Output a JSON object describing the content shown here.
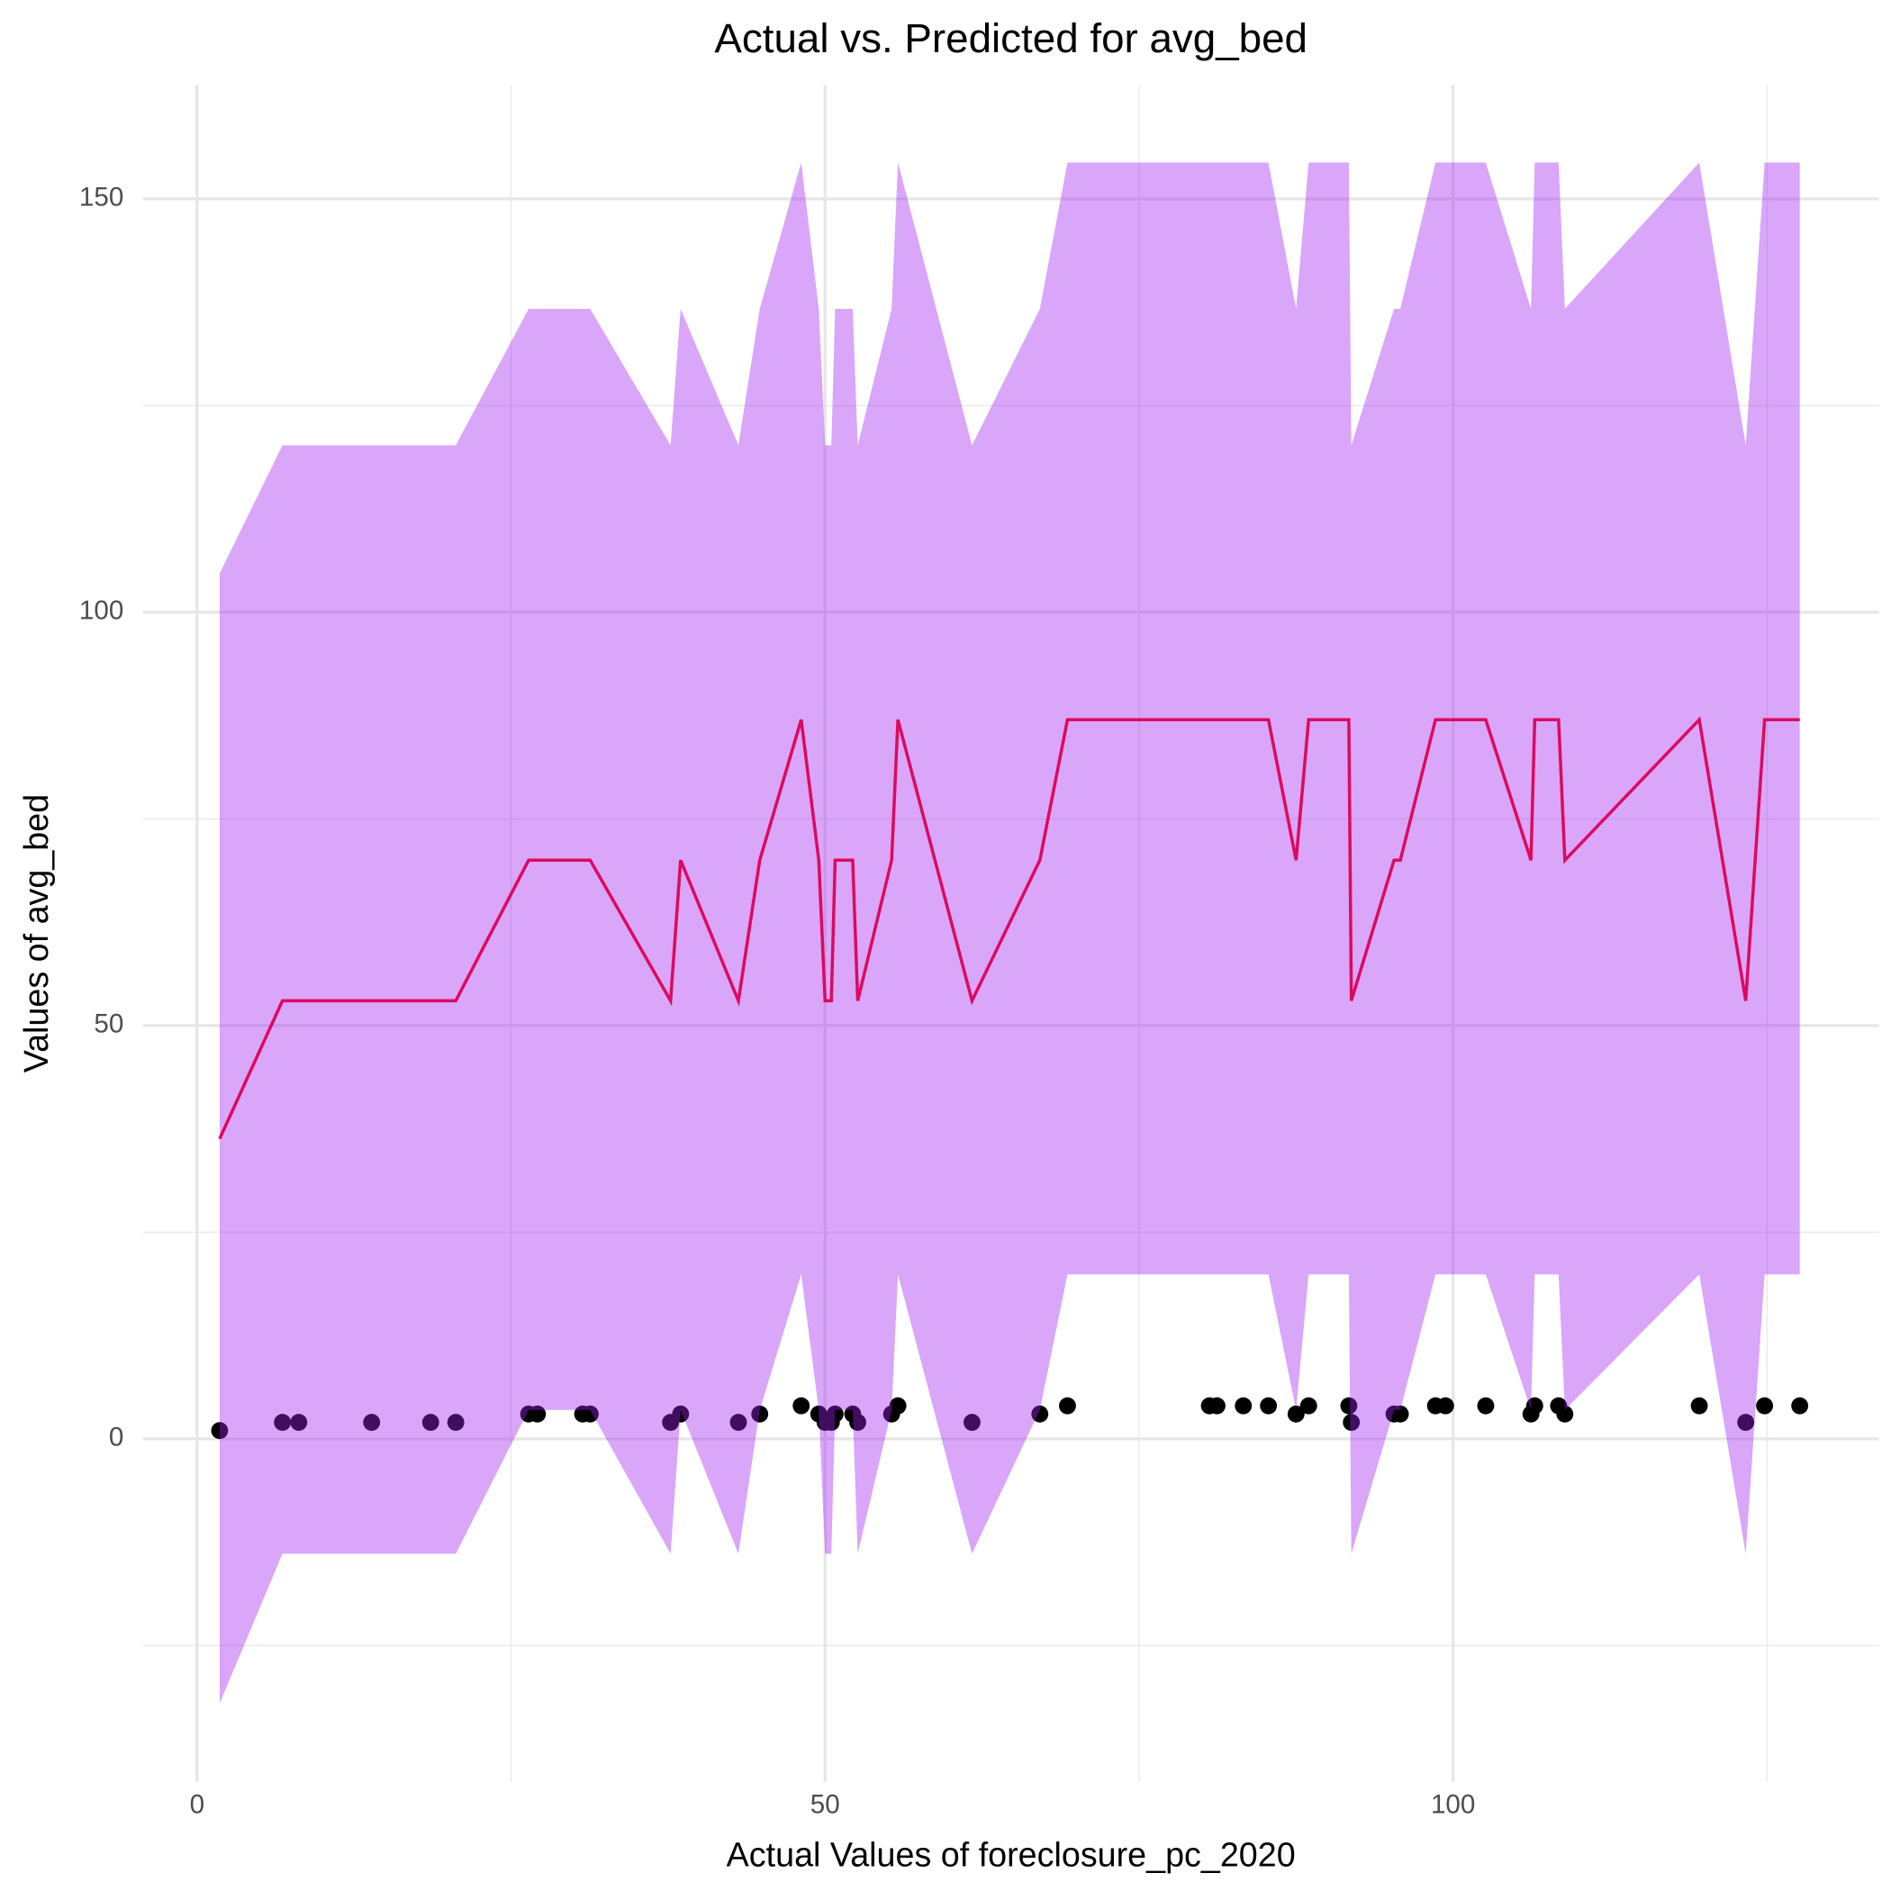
{
  "chart_data": {
    "type": "ribbon-line-scatter",
    "title": "Actual vs. Predicted for avg_bed",
    "x_label": "Actual Values of foreclosure_pc_2020",
    "y_label": "Values of avg_bed",
    "xlim": [
      -4.3,
      133.9
    ],
    "ylim": [
      -41.5,
      163.8
    ],
    "xticks": [
      0,
      50,
      100
    ],
    "yticks": [
      0,
      50,
      100,
      150
    ],
    "x_minor_ticks": [
      25,
      75,
      125
    ],
    "y_minor_ticks": [
      -25,
      25,
      75,
      125
    ],
    "grid": true,
    "x": [
      1.8,
      6.8,
      8.1,
      13.9,
      18.6,
      20.6,
      26.4,
      27.1,
      30.7,
      31.3,
      37.7,
      38.5,
      43.1,
      44.8,
      48.1,
      49.5,
      50.0,
      50.5,
      50.8,
      52.2,
      52.6,
      55.3,
      55.8,
      61.7,
      67.1,
      69.3,
      80.6,
      81.2,
      83.3,
      85.3,
      87.5,
      88.5,
      91.7,
      91.9,
      95.3,
      95.8,
      98.6,
      99.4,
      102.6,
      106.2,
      106.5,
      108.4,
      108.9,
      119.6,
      123.3,
      124.8,
      127.6
    ],
    "points": {
      "color": "#000000",
      "values": [
        1,
        2,
        2,
        2,
        2,
        2,
        3,
        3,
        3,
        3,
        2,
        3,
        2,
        3,
        4,
        3,
        2,
        2,
        3,
        3,
        2,
        3,
        4,
        2,
        3,
        4,
        4,
        4,
        4,
        4,
        3,
        4,
        4,
        2,
        3,
        3,
        4,
        4,
        4,
        3,
        4,
        4,
        3,
        4,
        2,
        4,
        4
      ]
    },
    "line": {
      "color": "#dc0a5f",
      "values": [
        36.3,
        53,
        53,
        53,
        53,
        53,
        70,
        70,
        70,
        70,
        53,
        70,
        53,
        70,
        87,
        70,
        53,
        53,
        70,
        70,
        53,
        70,
        87,
        53,
        70,
        87,
        87,
        87,
        87,
        87,
        70,
        87,
        87,
        53,
        70,
        70,
        87,
        87,
        87,
        70,
        87,
        87,
        70,
        87,
        53,
        87,
        87
      ]
    },
    "ribbon": {
      "color": "#a020f0",
      "upper": [
        104.7,
        120.2,
        120.2,
        120.2,
        120.2,
        120.2,
        136.7,
        136.7,
        136.7,
        136.7,
        120.2,
        136.7,
        120.2,
        136.7,
        154.4,
        136.7,
        120.2,
        120.2,
        136.7,
        136.7,
        120.2,
        136.7,
        154.4,
        120.2,
        136.7,
        154.4,
        154.4,
        154.4,
        154.4,
        154.4,
        136.7,
        154.4,
        154.4,
        120.2,
        136.7,
        136.7,
        154.4,
        154.4,
        154.4,
        136.7,
        154.4,
        154.4,
        136.7,
        154.4,
        120.2,
        154.4,
        154.4
      ],
      "lower": [
        -32,
        -13.9,
        -13.9,
        -13.9,
        -13.9,
        -13.9,
        3.5,
        3.5,
        3.5,
        3.5,
        -13.9,
        3.5,
        -13.9,
        3.5,
        19.9,
        3.5,
        -13.9,
        -13.9,
        3.5,
        3.5,
        -13.9,
        3.5,
        19.9,
        -13.9,
        3.5,
        19.9,
        19.9,
        19.9,
        19.9,
        19.9,
        3.5,
        19.9,
        19.9,
        -13.9,
        3.5,
        3.5,
        19.9,
        19.9,
        19.9,
        3.5,
        19.9,
        19.9,
        3.5,
        19.9,
        -13.9,
        19.9,
        19.9
      ]
    }
  }
}
